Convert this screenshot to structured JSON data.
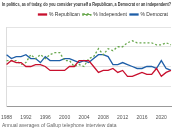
{
  "chart_data": {
    "type": "line",
    "title": "In politics, as of today, do you consider yourself a Republican, a Democrat or an independent?",
    "subtitle": "Annual averages of Gallup telephone interview data",
    "categories": [
      "1988",
      null,
      null,
      null,
      "1992",
      null,
      null,
      null,
      "1996",
      null,
      null,
      null,
      "2000",
      null,
      null,
      null,
      "2004",
      null,
      null,
      null,
      "2008",
      null,
      null,
      null,
      "2012",
      null,
      null,
      null,
      "2016",
      null,
      null,
      null,
      "2020",
      null,
      null
    ],
    "series": [
      {
        "name": "% Republican",
        "color": "#c8102e",
        "line_style": "solid",
        "values": [
          31,
          33,
          32,
          32,
          30,
          30,
          31,
          31,
          30,
          28,
          28,
          28,
          28,
          30,
          30,
          33,
          33,
          33,
          30,
          27,
          28,
          28,
          29,
          27,
          28,
          25,
          25,
          26,
          27,
          26,
          26,
          29,
          25,
          27,
          28
        ]
      },
      {
        "name": "% Independent",
        "color": "#6aa84f",
        "line_style": "dotted",
        "values": [
          33,
          33,
          33,
          31,
          32,
          36,
          34,
          36,
          34,
          36,
          37,
          37,
          33,
          33,
          30,
          31,
          30,
          34,
          35,
          39,
          36,
          39,
          38,
          40,
          40,
          42,
          43,
          42,
          42,
          42,
          42,
          41,
          41,
          42,
          41
        ]
      },
      {
        "name": "% Democrat",
        "color": "#1f5fa8",
        "line_style": "solid",
        "values": [
          36,
          34,
          35,
          35,
          36,
          34,
          34,
          32,
          35,
          33,
          33,
          33,
          34,
          34,
          33,
          32,
          33,
          32,
          34,
          36,
          36,
          35,
          31,
          31,
          32,
          31,
          30,
          29,
          29,
          30,
          30,
          29,
          33,
          29,
          28
        ]
      }
    ],
    "ylim": [
      10,
      50
    ],
    "yticks": [
      10,
      20,
      30,
      40,
      50
    ],
    "grid": true,
    "legend": "top",
    "tick_labels": "x"
  }
}
